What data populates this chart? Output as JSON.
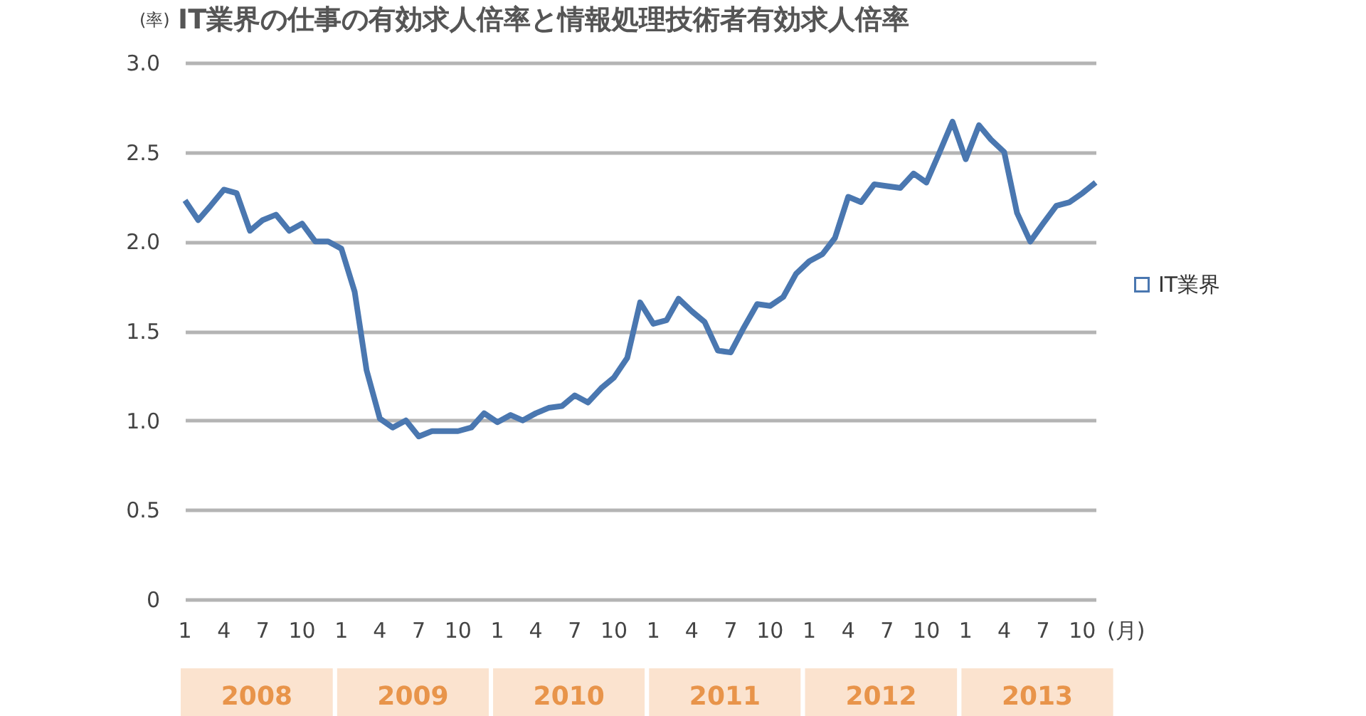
{
  "chart_data": {
    "type": "line",
    "title": "IT業界の仕事の有効求人倍率と情報処理技術者有効求人倍率",
    "ylabel": "(率)",
    "xlabel": "(月)",
    "x": [
      "2008-01",
      "2008-02",
      "2008-03",
      "2008-04",
      "2008-05",
      "2008-06",
      "2008-07",
      "2008-08",
      "2008-09",
      "2008-10",
      "2008-11",
      "2008-12",
      "2009-01",
      "2009-02",
      "2009-03",
      "2009-04",
      "2009-05",
      "2009-06",
      "2009-07",
      "2009-08",
      "2009-09",
      "2009-10",
      "2009-11",
      "2009-12",
      "2010-01",
      "2010-02",
      "2010-03",
      "2010-04",
      "2010-05",
      "2010-06",
      "2010-07",
      "2010-08",
      "2010-09",
      "2010-10",
      "2010-11",
      "2010-12",
      "2011-01",
      "2011-02",
      "2011-03",
      "2011-04",
      "2011-05",
      "2011-06",
      "2011-07",
      "2011-08",
      "2011-09",
      "2011-10",
      "2011-11",
      "2011-12",
      "2012-01",
      "2012-02",
      "2012-03",
      "2012-04",
      "2012-05",
      "2012-06",
      "2012-07",
      "2012-08",
      "2012-09",
      "2012-10",
      "2012-11",
      "2012-12",
      "2013-01",
      "2013-02",
      "2013-03",
      "2013-04",
      "2013-05",
      "2013-06",
      "2013-07",
      "2013-08",
      "2013-09",
      "2013-10",
      "2013-11"
    ],
    "series": [
      {
        "name": "IT業界",
        "color": "#4a77b0",
        "values": [
          2.23,
          2.12,
          2.2,
          2.29,
          2.27,
          2.06,
          2.12,
          2.15,
          2.06,
          2.1,
          2.0,
          2.0,
          1.96,
          1.72,
          1.28,
          1.01,
          0.96,
          1.0,
          0.91,
          0.94,
          0.94,
          0.94,
          0.96,
          1.04,
          0.99,
          1.03,
          1.0,
          1.04,
          1.07,
          1.08,
          1.14,
          1.1,
          1.18,
          1.24,
          1.35,
          1.66,
          1.54,
          1.56,
          1.68,
          1.61,
          1.55,
          1.39,
          1.38,
          1.52,
          1.65,
          1.64,
          1.69,
          1.82,
          1.89,
          1.93,
          2.02,
          2.25,
          2.22,
          2.32,
          2.31,
          2.3,
          2.38,
          2.33,
          2.5,
          2.67,
          2.46,
          2.65,
          2.57,
          2.5,
          2.16,
          2.0,
          2.1,
          2.2,
          2.22,
          2.27,
          2.33
        ]
      }
    ],
    "xlim": [
      "2008-01",
      "2013-11"
    ],
    "xticks": [
      {
        "value": "2008-01",
        "label": "1"
      },
      {
        "value": "2008-04",
        "label": "4"
      },
      {
        "value": "2008-07",
        "label": "7"
      },
      {
        "value": "2008-10",
        "label": "10"
      },
      {
        "value": "2009-01",
        "label": "1"
      },
      {
        "value": "2009-04",
        "label": "4"
      },
      {
        "value": "2009-07",
        "label": "7"
      },
      {
        "value": "2009-10",
        "label": "10"
      },
      {
        "value": "2010-01",
        "label": "1"
      },
      {
        "value": "2010-04",
        "label": "4"
      },
      {
        "value": "2010-07",
        "label": "7"
      },
      {
        "value": "2010-10",
        "label": "10"
      },
      {
        "value": "2011-01",
        "label": "1"
      },
      {
        "value": "2011-04",
        "label": "4"
      },
      {
        "value": "2011-07",
        "label": "7"
      },
      {
        "value": "2011-10",
        "label": "10"
      },
      {
        "value": "2012-01",
        "label": "1"
      },
      {
        "value": "2012-04",
        "label": "4"
      },
      {
        "value": "2012-07",
        "label": "7"
      },
      {
        "value": "2012-10",
        "label": "10"
      },
      {
        "value": "2013-01",
        "label": "1"
      },
      {
        "value": "2013-04",
        "label": "4"
      },
      {
        "value": "2013-07",
        "label": "7"
      },
      {
        "value": "2013-10",
        "label": "10"
      }
    ],
    "ylim": [
      0,
      3.0
    ],
    "yticks": [
      {
        "value": 0,
        "label": "0"
      },
      {
        "value": 0.5,
        "label": "0.5"
      },
      {
        "value": 1.0,
        "label": "1.0"
      },
      {
        "value": 1.5,
        "label": "1.5"
      },
      {
        "value": 2.0,
        "label": "2.0"
      },
      {
        "value": 2.5,
        "label": "2.5"
      },
      {
        "value": 3.0,
        "label": "3.0"
      }
    ],
    "grid": "y",
    "legend": "right",
    "marker": "none",
    "line_style": "solid",
    "annotations": [
      "2008",
      "2009",
      "2010",
      "2011",
      "2012",
      "2013"
    ]
  }
}
